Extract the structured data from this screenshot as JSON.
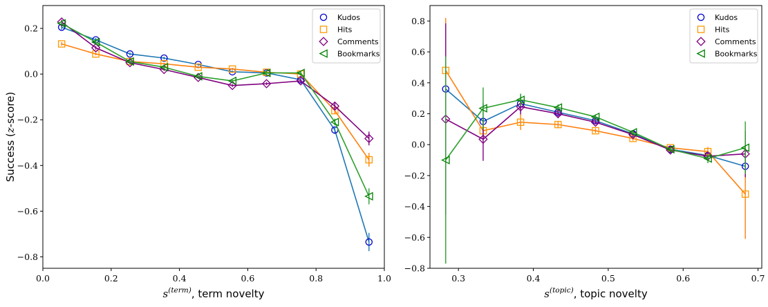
{
  "chart_data": [
    {
      "type": "line",
      "ylabel": "Success (z-score)",
      "ylabel_parts": [
        "Success (",
        "z",
        "-score)"
      ],
      "xlabel_symbol": "s",
      "xlabel_superscript": "(term)",
      "xlabel_text": ", term novelty",
      "xlim": [
        0.0,
        1.0
      ],
      "ylim": [
        -0.85,
        0.3
      ],
      "xticks": [
        "0.0",
        "0.2",
        "0.4",
        "0.6",
        "0.8",
        "1.0"
      ],
      "xtick_values": [
        0.0,
        0.2,
        0.4,
        0.6,
        0.8,
        1.0
      ],
      "yticks": [
        "0.2",
        "0.0",
        "−0.2",
        "−0.4",
        "−0.6",
        "−0.8"
      ],
      "ytick_values": [
        0.2,
        0.0,
        -0.2,
        -0.4,
        -0.6,
        -0.8
      ],
      "legend_position": "top-right",
      "x": [
        0.055,
        0.155,
        0.255,
        0.355,
        0.455,
        0.555,
        0.655,
        0.755,
        0.855,
        0.955
      ],
      "series": [
        {
          "name": "Kudos",
          "marker": "circle",
          "color": "#1f77b4",
          "marker_color": "#0000cc",
          "values": [
            0.205,
            0.15,
            0.088,
            0.07,
            0.042,
            0.01,
            0.005,
            -0.025,
            -0.245,
            -0.735
          ],
          "errors": [
            0.01,
            0.008,
            0.006,
            0.006,
            0.005,
            0.005,
            0.005,
            0.008,
            0.015,
            0.04
          ]
        },
        {
          "name": "Hits",
          "marker": "square",
          "color": "#ff7f0e",
          "marker_color": "#ff9900",
          "values": [
            0.132,
            0.088,
            0.055,
            0.045,
            0.03,
            0.022,
            0.008,
            0.0,
            -0.16,
            -0.375
          ],
          "errors": [
            0.008,
            0.006,
            0.005,
            0.005,
            0.005,
            0.005,
            0.005,
            0.008,
            0.015,
            0.03
          ]
        },
        {
          "name": "Comments",
          "marker": "diamond",
          "color": "#800080",
          "marker_color": "#800080",
          "values": [
            0.228,
            0.115,
            0.05,
            0.02,
            -0.015,
            -0.05,
            -0.042,
            -0.03,
            -0.14,
            -0.282
          ],
          "errors": [
            0.01,
            0.008,
            0.006,
            0.006,
            0.005,
            0.006,
            0.006,
            0.008,
            0.015,
            0.03
          ]
        },
        {
          "name": "Bookmarks",
          "marker": "triangle-left",
          "color": "#2ca02c",
          "marker_color": "#008000",
          "values": [
            0.222,
            0.14,
            0.055,
            0.03,
            -0.01,
            -0.03,
            0.005,
            0.005,
            -0.21,
            -0.535
          ],
          "errors": [
            0.01,
            0.008,
            0.006,
            0.006,
            0.005,
            0.005,
            0.005,
            0.008,
            0.015,
            0.035
          ]
        }
      ]
    },
    {
      "type": "line",
      "ylabel": "",
      "xlabel_symbol": "s",
      "xlabel_superscript": "(topic)",
      "xlabel_text": ", topic novelty",
      "xlim": [
        0.262,
        0.705
      ],
      "ylim": [
        -0.8,
        0.9
      ],
      "xticks": [
        "0.3",
        "0.4",
        "0.5",
        "0.6",
        "0.7"
      ],
      "xtick_values": [
        0.3,
        0.4,
        0.5,
        0.6,
        0.7
      ],
      "yticks": [
        "0.8",
        "0.6",
        "0.4",
        "0.2",
        "0.0",
        "−0.2",
        "−0.4",
        "−0.6",
        "−0.8"
      ],
      "ytick_values": [
        0.8,
        0.6,
        0.4,
        0.2,
        0.0,
        -0.2,
        -0.4,
        -0.6,
        -0.8
      ],
      "legend_position": "top-right",
      "x": [
        0.283,
        0.333,
        0.383,
        0.433,
        0.483,
        0.533,
        0.583,
        0.633,
        0.683
      ],
      "series": [
        {
          "name": "Kudos",
          "marker": "circle",
          "color": "#1f77b4",
          "marker_color": "#0000cc",
          "values": [
            0.36,
            0.15,
            0.265,
            0.21,
            0.155,
            0.07,
            -0.03,
            -0.07,
            -0.14
          ],
          "errors": [
            0.35,
            0.12,
            0.06,
            0.02,
            0.015,
            0.015,
            0.015,
            0.03,
            0.08
          ]
        },
        {
          "name": "Hits",
          "marker": "square",
          "color": "#ff7f0e",
          "marker_color": "#ff9900",
          "values": [
            0.48,
            0.09,
            0.145,
            0.13,
            0.09,
            0.04,
            -0.02,
            -0.045,
            -0.32
          ],
          "errors": [
            0.34,
            0.06,
            0.05,
            0.02,
            0.015,
            0.015,
            0.015,
            0.03,
            0.29
          ]
        },
        {
          "name": "Comments",
          "marker": "diamond",
          "color": "#800080",
          "marker_color": "#800080",
          "values": [
            0.165,
            0.035,
            0.245,
            0.2,
            0.145,
            0.065,
            -0.035,
            -0.075,
            -0.06
          ],
          "errors": [
            0.62,
            0.14,
            0.05,
            0.02,
            0.015,
            0.015,
            0.015,
            0.03,
            0.15
          ]
        },
        {
          "name": "Bookmarks",
          "marker": "triangle-left",
          "color": "#2ca02c",
          "marker_color": "#008000",
          "values": [
            -0.1,
            0.235,
            0.29,
            0.24,
            0.18,
            0.08,
            -0.03,
            -0.09,
            -0.02
          ],
          "errors": [
            0.67,
            0.135,
            0.04,
            0.02,
            0.015,
            0.015,
            0.015,
            0.03,
            0.17
          ]
        }
      ]
    }
  ]
}
